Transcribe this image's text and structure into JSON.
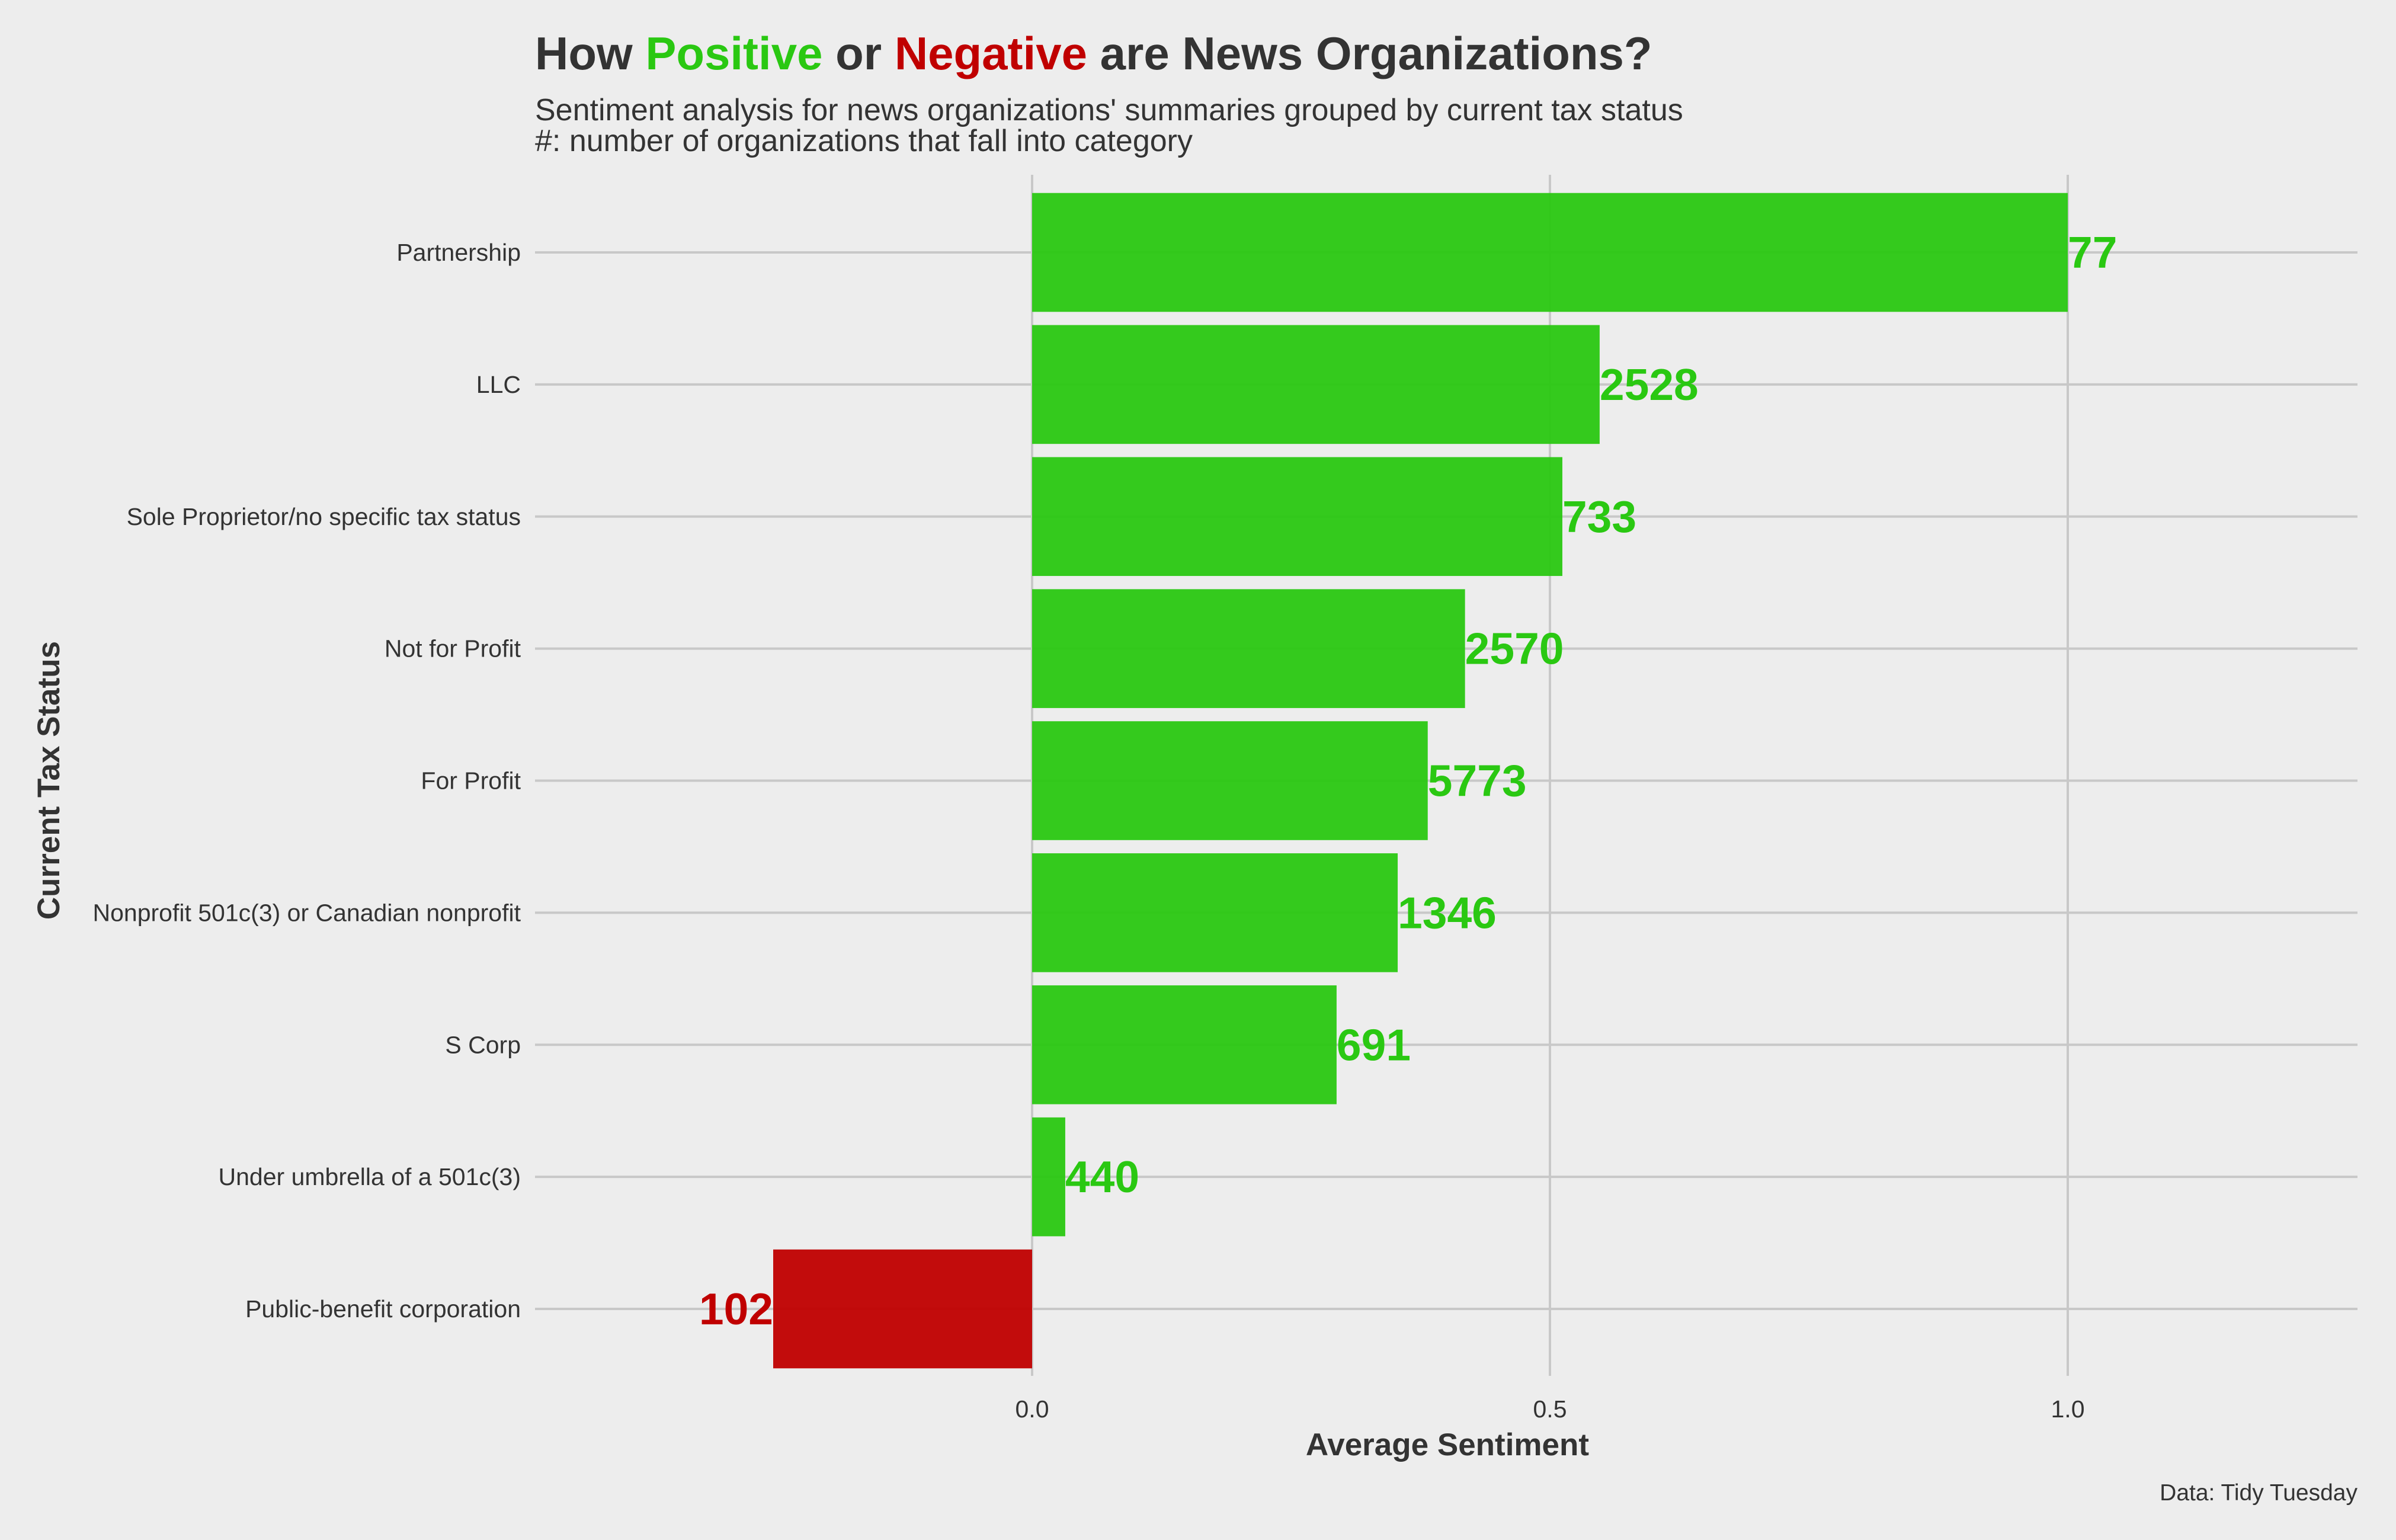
{
  "chart_data": {
    "type": "bar",
    "orientation": "horizontal",
    "title": {
      "parts": [
        {
          "text": "How ",
          "color": "#333333"
        },
        {
          "text": "Positive",
          "color": "#2AC812"
        },
        {
          "text": " or ",
          "color": "#333333"
        },
        {
          "text": "Negative",
          "color": "#C00000"
        },
        {
          "text": " are News Organizations?",
          "color": "#333333"
        }
      ]
    },
    "subtitle": [
      "Sentiment analysis for news organizations' summaries grouped by current tax status",
      "#: number of organizations that fall into category"
    ],
    "xlabel": "Average Sentiment",
    "ylabel": "Current Tax Status",
    "caption": "Data: Tidy Tuesday",
    "xlim": [
      -0.48,
      1.28
    ],
    "xticks": [
      {
        "value": 0.0,
        "label": "0.0"
      },
      {
        "value": 0.5,
        "label": "0.5"
      },
      {
        "value": 1.0,
        "label": "1.0"
      }
    ],
    "grid": true,
    "legend": "none",
    "categories": [
      "Partnership",
      "LLC",
      "Sole Proprietor/no specific tax status",
      "Not for Profit",
      "For Profit",
      "Nonprofit 501c(3) or Canadian nonprofit",
      "S Corp",
      "Under umbrella of a 501c(3)",
      "Public-benefit corporation"
    ],
    "values": [
      1.0,
      0.548,
      0.512,
      0.418,
      0.382,
      0.353,
      0.294,
      0.032,
      -0.25
    ],
    "counts": [
      "77",
      "2528",
      "733",
      "2570",
      "5773",
      "1346",
      "691",
      "440",
      "102"
    ],
    "colors": {
      "positive": "#2AC812",
      "negative": "#C00000",
      "text": "#333333",
      "background": "#EDEDED",
      "grid": "#C8C8C8"
    }
  }
}
